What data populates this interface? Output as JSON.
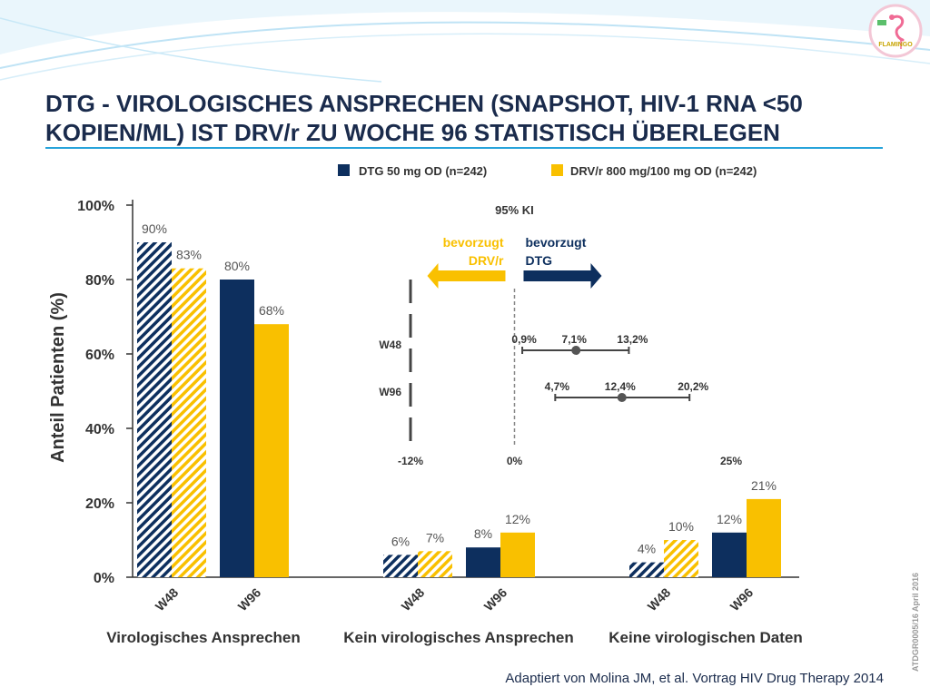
{
  "header": {
    "title_line1": "DTG - VIROLOGISCHES ANSPRECHEN (SNAPSHOT, HIV-1 RNA <50",
    "title_line2": "KOPIEN/ML) IST DRV/r ZU WOCHE 96 STATISTISCH ÜBERLEGEN",
    "logo_text": "FLAMINGO"
  },
  "side_note": "ATDGR0005/16  April 2016",
  "footer": {
    "citation": "Adaptiert von Molina JM, et al. Vortrag HIV Drug Therapy 2014"
  },
  "colors": {
    "dtg": "#0d2f5e",
    "drv": "#f9c000",
    "title": "#1a2b4c",
    "accent": "#27a3da"
  },
  "chart_data": [
    {
      "type": "bar",
      "title": "",
      "ylabel": "Anteil Patienten (%)",
      "xlabel": "",
      "ylim": [
        0,
        100
      ],
      "yticks": [
        "0%",
        "20%",
        "40%",
        "60%",
        "80%",
        "100%"
      ],
      "grid": false,
      "legend": "top",
      "groups": [
        "Virologisches Ansprechen",
        "Kein virologisches Ansprechen",
        "Keine virologischen Daten"
      ],
      "timepoints": [
        "W48",
        "W96"
      ],
      "series": [
        {
          "name": "DTG 50 mg OD (n=242)",
          "values": [
            [
              90,
              80
            ],
            [
              6,
              8
            ],
            [
              4,
              12
            ]
          ]
        },
        {
          "name": "DRV/r 800 mg/100 mg OD (n=242)",
          "values": [
            [
              83,
              68
            ],
            [
              7,
              12
            ],
            [
              10,
              21
            ]
          ]
        }
      ],
      "note": "W48 bars hatched, W96 bars solid"
    },
    {
      "type": "scatter",
      "title": "95% KI",
      "xlim": [
        -12,
        25
      ],
      "xticks": [
        "-12%",
        "0%",
        "25%"
      ],
      "arrow_left": [
        "bevorzugt",
        "DRV/r"
      ],
      "arrow_right": [
        "bevorzugt",
        "DTG"
      ],
      "rows": [
        {
          "label": "W48",
          "lower": 0.9,
          "point": 7.1,
          "upper": 13.2,
          "lower_text": "0,9%",
          "point_text": "7,1%",
          "upper_text": "13,2%"
        },
        {
          "label": "W96",
          "lower": 4.7,
          "point": 12.4,
          "upper": 20.2,
          "lower_text": "4,7%",
          "point_text": "12,4%",
          "upper_text": "20,2%"
        }
      ]
    }
  ]
}
